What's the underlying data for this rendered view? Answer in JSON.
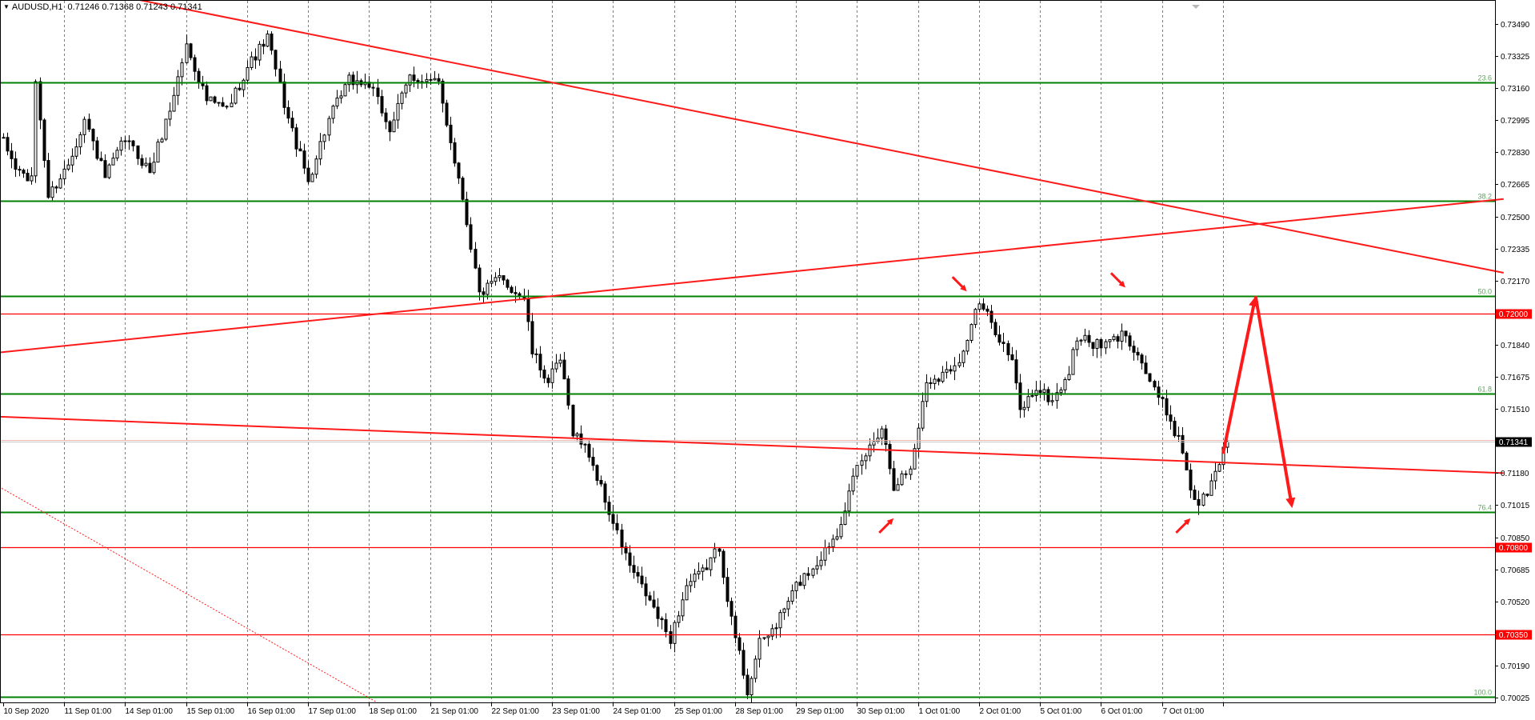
{
  "header": {
    "symbol": "AUDUSD,H1",
    "ohlc": "0.71246 0.71368 0.71243 0.71341"
  },
  "colors": {
    "background": "#ffffff",
    "candle": "#000000",
    "grid": "#7f7f7f",
    "fib_line": "#008000",
    "fib_label": "#5fa35f",
    "support_resistance": "#ff0000",
    "trendline": "#ff1a1a",
    "current_price_bg": "#000000",
    "level_label_bg": "#ff0000"
  },
  "chart_data": {
    "type": "candlestick",
    "symbol": "AUDUSD",
    "timeframe": "H1",
    "y_axis": {
      "range": [
        0.7,
        0.7358
      ],
      "ticks": [
        "0.73490",
        "0.73325",
        "0.73160",
        "0.72995",
        "0.72830",
        "0.72665",
        "0.72500",
        "0.72335",
        "0.72170",
        "0.72005",
        "0.71840",
        "0.71675",
        "0.71510",
        "0.71345",
        "0.71180",
        "0.71015",
        "0.70850",
        "0.70685",
        "0.70520",
        "0.70355",
        "0.70190",
        "0.70025"
      ]
    },
    "x_axis": {
      "labels": [
        "10 Sep 2020",
        "11 Sep 01:00",
        "14 Sep 01:00",
        "15 Sep 01:00",
        "16 Sep 01:00",
        "17 Sep 01:00",
        "18 Sep 01:00",
        "21 Sep 01:00",
        "22 Sep 01:00",
        "23 Sep 01:00",
        "24 Sep 01:00",
        "25 Sep 01:00",
        "28 Sep 01:00",
        "29 Sep 01:00",
        "30 Sep 01:00",
        "1 Oct 01:00",
        "2 Oct 01:00",
        "5 Oct 01:00",
        "6 Oct 01:00",
        "7 Oct 01:00"
      ],
      "future_gridline_count": 1
    },
    "price_path": [
      [
        0,
        0.7288
      ],
      [
        3,
        0.7275
      ],
      [
        7,
        0.7268
      ],
      [
        8,
        0.732
      ],
      [
        11,
        0.726
      ],
      [
        16,
        0.7277
      ],
      [
        20,
        0.73
      ],
      [
        25,
        0.727
      ],
      [
        30,
        0.729
      ],
      [
        36,
        0.7273
      ],
      [
        41,
        0.7305
      ],
      [
        45,
        0.7338
      ],
      [
        50,
        0.731
      ],
      [
        55,
        0.7305
      ],
      [
        60,
        0.7327
      ],
      [
        65,
        0.7342
      ],
      [
        70,
        0.73
      ],
      [
        75,
        0.7268
      ],
      [
        80,
        0.73
      ],
      [
        85,
        0.732
      ],
      [
        90,
        0.7318
      ],
      [
        95,
        0.7295
      ],
      [
        100,
        0.7322
      ],
      [
        107,
        0.7318
      ],
      [
        113,
        0.726
      ],
      [
        117,
        0.721
      ],
      [
        122,
        0.7218
      ],
      [
        128,
        0.7208
      ],
      [
        130,
        0.718
      ],
      [
        134,
        0.7165
      ],
      [
        137,
        0.7176
      ],
      [
        140,
        0.714
      ],
      [
        144,
        0.7128
      ],
      [
        150,
        0.7092
      ],
      [
        154,
        0.707
      ],
      [
        159,
        0.7052
      ],
      [
        162,
        0.704
      ],
      [
        164,
        0.7033
      ],
      [
        168,
        0.706
      ],
      [
        172,
        0.7067
      ],
      [
        176,
        0.708
      ],
      [
        179,
        0.7042
      ],
      [
        181,
        0.7025
      ],
      [
        183,
        0.7006
      ],
      [
        186,
        0.703
      ],
      [
        190,
        0.704
      ],
      [
        195,
        0.706
      ],
      [
        200,
        0.7072
      ],
      [
        205,
        0.7088
      ],
      [
        210,
        0.712
      ],
      [
        214,
        0.7135
      ],
      [
        216,
        0.7142
      ],
      [
        219,
        0.7112
      ],
      [
        223,
        0.712
      ],
      [
        227,
        0.7165
      ],
      [
        232,
        0.717
      ],
      [
        236,
        0.718
      ],
      [
        238,
        0.7195
      ],
      [
        240,
        0.7205
      ],
      [
        244,
        0.7192
      ],
      [
        248,
        0.7175
      ],
      [
        250,
        0.715
      ],
      [
        254,
        0.7162
      ],
      [
        258,
        0.7155
      ],
      [
        262,
        0.717
      ],
      [
        264,
        0.7188
      ],
      [
        270,
        0.7183
      ],
      [
        276,
        0.719
      ],
      [
        280,
        0.7175
      ],
      [
        283,
        0.716
      ],
      [
        286,
        0.715
      ],
      [
        290,
        0.713
      ],
      [
        292,
        0.711
      ],
      [
        294,
        0.7102
      ],
      [
        297,
        0.7112
      ],
      [
        300,
        0.713
      ],
      [
        301,
        0.71341
      ]
    ],
    "horizontal_levels": [
      {
        "kind": "fib",
        "label": "23.6",
        "value": 0.7319
      },
      {
        "kind": "fib",
        "label": "38.2",
        "value": 0.7258
      },
      {
        "kind": "fib",
        "label": "50.0",
        "value": 0.7209
      },
      {
        "kind": "fib",
        "label": "61.8",
        "value": 0.7159
      },
      {
        "kind": "fib",
        "label": "76.4",
        "value": 0.7098
      },
      {
        "kind": "fib",
        "label": "100.0",
        "value": 0.7003
      },
      {
        "kind": "sr",
        "label": "0.72000",
        "value": 0.72
      },
      {
        "kind": "sr",
        "label": "0.70800",
        "value": 0.708
      },
      {
        "kind": "sr",
        "label": "0.70350",
        "value": 0.7035
      }
    ],
    "current_price": {
      "label": "0.71341",
      "value": 0.71341
    },
    "trendlines": [
      {
        "from": [
          20,
          0.7367
        ],
        "to": [
          369,
          0.7221
        ]
      },
      {
        "from": [
          -1,
          0.718
        ],
        "to": [
          369,
          0.7259
        ]
      },
      {
        "from": [
          -1,
          0.7147
        ],
        "to": [
          369,
          0.7118
        ]
      }
    ],
    "dotted_trendline": {
      "from": [
        -1,
        0.7111
      ],
      "to": [
        92,
        0.7
      ]
    },
    "projection_path": [
      [
        300,
        0.7128
      ],
      [
        308,
        0.7209
      ],
      [
        317,
        0.71
      ]
    ],
    "signal_arrows": [
      {
        "direction": "down",
        "at": [
          237,
          0.7209
        ]
      },
      {
        "direction": "down",
        "at": [
          276,
          0.7211
        ]
      },
      {
        "direction": "up",
        "at": [
          219,
          0.7098
        ]
      },
      {
        "direction": "up",
        "at": [
          292,
          0.7098
        ]
      }
    ]
  }
}
